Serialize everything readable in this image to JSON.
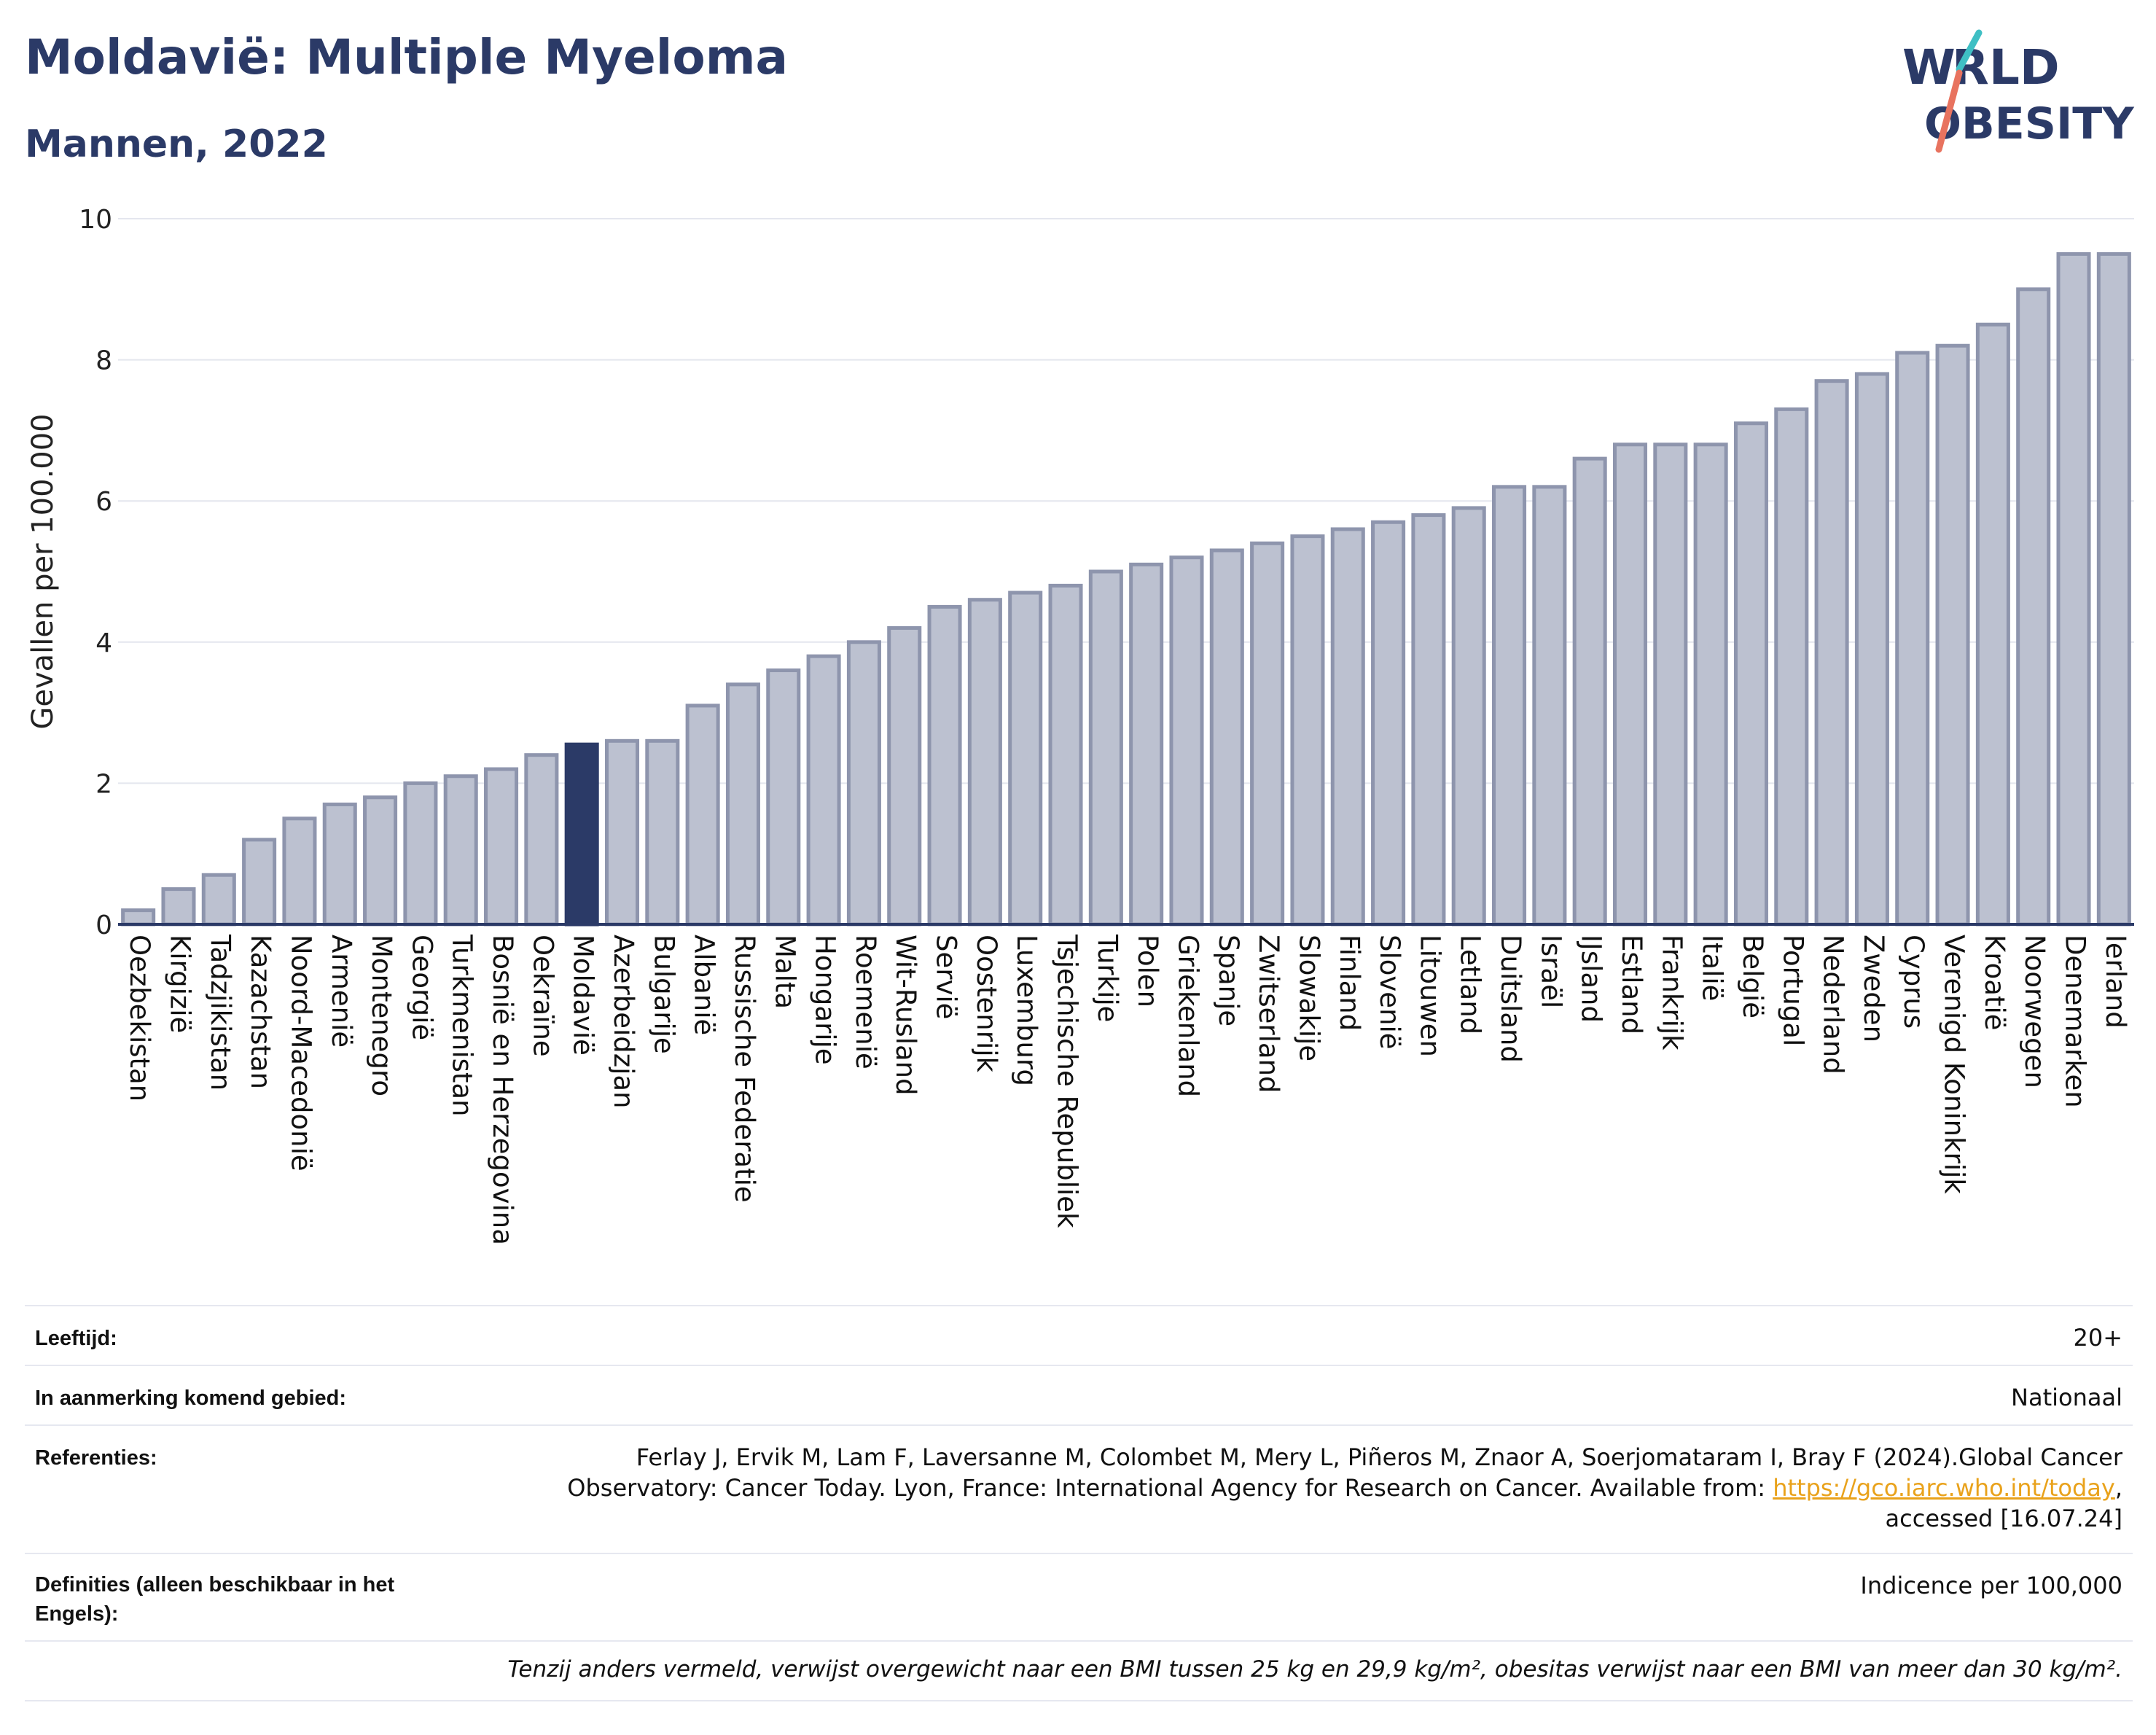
{
  "header": {
    "title": "Moldavië: Multiple Myeloma",
    "subtitle": "Mannen, 2022",
    "logo_line1": "WORLD",
    "logo_line2": "OBESITY"
  },
  "colors": {
    "title": "#2b3a67",
    "bar": "#bcc1d0",
    "bar_edge": "#8e95ad",
    "highlight": "#2b3a67",
    "logo_teal": "#3fbfc4",
    "logo_coral": "#e8735f"
  },
  "chart_data": {
    "type": "bar",
    "ylabel": "Gevallen per 100.000",
    "xlabel": "",
    "ylim": [
      0,
      10
    ],
    "yticks": [
      0,
      2,
      4,
      6,
      8,
      10
    ],
    "grid": true,
    "highlight": "Moldavië",
    "categories": [
      "Oezbekistan",
      "Kirgizië",
      "Tadzjikistan",
      "Kazachstan",
      "Noord-Macedonië",
      "Armenië",
      "Montenegro",
      "Georgië",
      "Turkmenistan",
      "Bosnië en Herzegovina",
      "Oekraïne",
      "Moldavië",
      "Azerbeidzjan",
      "Bulgarije",
      "Albanië",
      "Russische Federatie",
      "Malta",
      "Hongarije",
      "Roemenië",
      "Wit-Rusland",
      "Servië",
      "Oostenrijk",
      "Luxemburg",
      "Tsjechische Republiek",
      "Turkije",
      "Polen",
      "Griekenland",
      "Spanje",
      "Zwitserland",
      "Slowakije",
      "Finland",
      "Slovenië",
      "Litouwen",
      "Letland",
      "Duitsland",
      "Israël",
      "IJsland",
      "Estland",
      "Frankrijk",
      "Italië",
      "België",
      "Portugal",
      "Nederland",
      "Zweden",
      "Cyprus",
      "Verenigd Koninkrijk",
      "Kroatië",
      "Noorwegen",
      "Denemarken",
      "Ierland"
    ],
    "values": [
      0.2,
      0.5,
      0.7,
      1.2,
      1.5,
      1.7,
      1.8,
      2.0,
      2.1,
      2.2,
      2.4,
      2.55,
      2.6,
      2.6,
      3.1,
      3.4,
      3.6,
      3.8,
      4.0,
      4.2,
      4.5,
      4.6,
      4.7,
      4.8,
      5.0,
      5.1,
      5.2,
      5.3,
      5.4,
      5.5,
      5.6,
      5.7,
      5.8,
      5.9,
      6.2,
      6.2,
      6.6,
      6.8,
      6.8,
      6.8,
      7.1,
      7.3,
      7.7,
      7.8,
      8.1,
      8.2,
      8.5,
      9.0,
      9.5,
      9.5
    ]
  },
  "info": {
    "age_label": "Leeftijd:",
    "age_value": "20+",
    "area_label": "In aanmerking komend gebied:",
    "area_value": "Nationaal",
    "ref_label": "Referenties:",
    "ref_line1": "Ferlay J, Ervik M, Lam F, Laversanne M, Colombet M, Mery L, Piñeros M, Znaor A, Soerjomataram I, Bray F (2024).Global Cancer",
    "ref_line2_pre": "Observatory: Cancer Today. Lyon, France: International Agency for Research on Cancer. Available from: ",
    "ref_link": "https://gco.iarc.who.int/today",
    "ref_line2_post": ",",
    "ref_line3": "accessed [16.07.24]",
    "def_label_1": "Definities (alleen beschikbaar in het",
    "def_label_2": "Engels):",
    "def_value": "Indicence per 100,000",
    "footnote": "Tenzij anders vermeld, verwijst overgewicht naar een BMI tussen 25 kg en 29,9 kg/m², obesitas verwijst naar een BMI van meer dan 30 kg/m²."
  }
}
